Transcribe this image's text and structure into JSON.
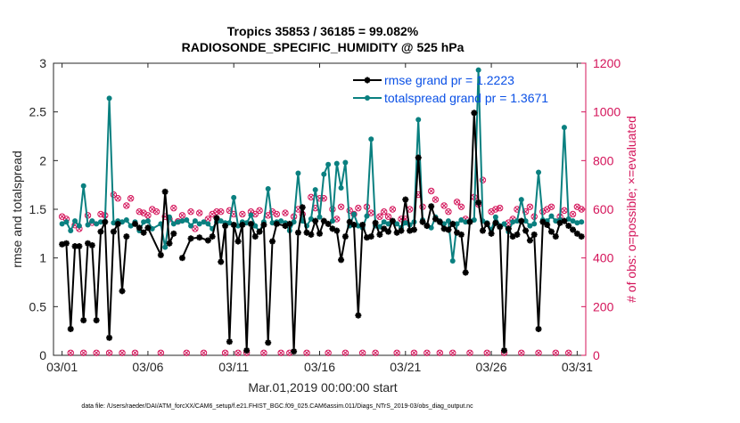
{
  "chart_data": {
    "type": "line",
    "title": "Tropics 35853 / 36185 = 99.082%",
    "subtitle": "RADIOSONDE_SPECIFIC_HUMIDITY @ 525 hPa",
    "xlabel": "Mar.01,2019 00:00:00 start",
    "ylabel": "rmse and totalspread",
    "ylabel_right": "# of obs: o=possible; ×=evaluated",
    "footer": "data file: /Users/raeder/DAI/ATM_forcXX/CAM6_setup/f.e21.FHIST_BGC.f09_025.CAM6assim.011/Diags_NTrS_2019-03/obs_diag_output.nc",
    "xlim": [
      0.5,
      31.5
    ],
    "ylim": [
      0,
      3
    ],
    "ylim_right": [
      0,
      1200
    ],
    "x_ticks": [
      1,
      6,
      11,
      16,
      21,
      26,
      31
    ],
    "x_tick_labels": [
      "03/01",
      "03/06",
      "03/11",
      "03/16",
      "03/21",
      "03/26",
      "03/31"
    ],
    "y_ticks": [
      0,
      0.5,
      1,
      1.5,
      2,
      2.5,
      3
    ],
    "y_tick_labels": [
      "0",
      "0.5",
      "1",
      "1.5",
      "2",
      "2.5",
      "3"
    ],
    "y2_ticks": [
      0,
      200,
      400,
      600,
      800,
      1000,
      1200
    ],
    "y2_tick_labels": [
      "0",
      "200",
      "400",
      "600",
      "800",
      "1000",
      "1200"
    ],
    "legend": [
      "rmse grand pr = 1.2223",
      "totalspread grand pr = 1.3671"
    ],
    "legend_position": "top-right",
    "grid": false,
    "colors": {
      "rmse": "#000000",
      "totalspread": "#0a8080",
      "obs": "#d4145a",
      "axis": "#262626"
    },
    "series": [
      {
        "name": "rmse",
        "x": [
          1.0,
          1.25,
          1.5,
          1.75,
          2.0,
          2.25,
          2.5,
          2.75,
          3.0,
          3.25,
          3.5,
          3.75,
          4.0,
          4.25,
          4.5,
          4.75,
          5.0,
          5.25,
          5.5,
          5.75,
          6.0,
          6.75,
          7.0,
          7.25,
          7.5,
          7.75,
          8.0,
          8.5,
          9.0,
          9.5,
          9.75,
          10.0,
          10.25,
          10.5,
          10.75,
          11.0,
          11.25,
          11.5,
          11.75,
          12.0,
          12.25,
          12.5,
          12.75,
          13.0,
          13.25,
          13.5,
          14.0,
          14.25,
          14.5,
          14.75,
          15.0,
          15.25,
          15.5,
          15.75,
          16.0,
          16.25,
          16.5,
          16.75,
          17.0,
          17.25,
          17.5,
          17.75,
          18.0,
          18.25,
          18.5,
          18.75,
          19.0,
          19.25,
          19.5,
          19.75,
          20.0,
          20.25,
          20.5,
          20.75,
          21.0,
          21.25,
          21.5,
          21.75,
          22.0,
          22.25,
          22.5,
          22.75,
          23.0,
          23.25,
          23.5,
          23.75,
          24.0,
          24.25,
          24.5,
          24.75,
          25.0,
          25.25,
          25.5,
          25.75,
          26.0,
          26.25,
          26.5,
          26.75,
          27.0,
          27.25,
          27.5,
          27.75,
          28.0,
          28.25,
          28.5,
          28.75,
          29.0,
          29.25,
          29.5,
          29.75,
          30.0,
          30.25,
          30.5,
          30.75,
          31.0,
          31.25
        ],
        "values": [
          1.14,
          1.15,
          0.27,
          1.12,
          1.12,
          0.36,
          1.15,
          1.13,
          0.36,
          1.27,
          1.37,
          0.18,
          1.27,
          1.35,
          0.66,
          1.22,
          null,
          1.35,
          1.31,
          1.26,
          1.31,
          1.03,
          1.68,
          1.15,
          1.25,
          null,
          1.0,
          1.2,
          1.21,
          1.18,
          1.22,
          1.41,
          0.96,
          1.33,
          0.14,
          1.34,
          1.17,
          1.34,
          0.05,
          1.35,
          1.22,
          1.27,
          1.34,
          0.13,
          1.17,
          1.35,
          1.33,
          1.35,
          0.04,
          1.26,
          1.52,
          1.26,
          1.24,
          1.38,
          1.25,
          1.38,
          1.35,
          1.3,
          1.28,
          0.98,
          1.22,
          1.37,
          1.34,
          0.41,
          1.34,
          1.21,
          1.22,
          1.36,
          1.24,
          1.3,
          1.27,
          1.38,
          1.26,
          1.28,
          1.6,
          1.28,
          1.29,
          2.03,
          1.37,
          1.33,
          1.53,
          1.4,
          1.37,
          1.3,
          1.29,
          1.35,
          1.26,
          1.24,
          0.85,
          1.37,
          2.49,
          1.57,
          1.28,
          1.35,
          1.25,
          1.36,
          1.32,
          0.05,
          1.3,
          1.22,
          1.24,
          1.38,
          1.28,
          1.18,
          1.24,
          0.27,
          1.37,
          1.34,
          1.27,
          1.22,
          1.36,
          1.38,
          1.33,
          1.29,
          1.25,
          1.22
        ],
        "marker": "star"
      },
      {
        "name": "totalspread",
        "x": [
          1.0,
          1.25,
          1.5,
          1.75,
          2.0,
          2.25,
          2.5,
          2.75,
          3.0,
          3.25,
          3.5,
          3.75,
          4.0,
          4.25,
          4.5,
          4.75,
          5.0,
          5.25,
          5.5,
          5.75,
          6.0,
          6.25,
          6.75,
          7.0,
          7.25,
          7.5,
          7.75,
          8.0,
          8.25,
          8.5,
          8.75,
          9.0,
          9.25,
          9.5,
          9.75,
          10.0,
          10.25,
          10.5,
          10.75,
          11.0,
          11.25,
          11.5,
          11.75,
          12.0,
          12.25,
          12.5,
          12.75,
          13.0,
          13.25,
          13.5,
          13.75,
          14.0,
          14.25,
          14.5,
          14.75,
          15.0,
          15.25,
          15.5,
          15.75,
          16.0,
          16.25,
          16.5,
          16.75,
          17.0,
          17.25,
          17.5,
          17.75,
          18.0,
          18.25,
          18.5,
          18.75,
          19.0,
          19.25,
          19.5,
          19.75,
          20.0,
          20.25,
          20.5,
          20.75,
          21.0,
          21.25,
          21.5,
          21.75,
          22.0,
          22.25,
          22.5,
          22.75,
          23.0,
          23.25,
          23.5,
          23.75,
          24.0,
          24.25,
          24.5,
          24.75,
          25.0,
          25.25,
          25.5,
          25.75,
          26.0,
          26.25,
          26.5,
          26.75,
          27.0,
          27.25,
          27.5,
          27.75,
          28.0,
          28.25,
          28.5,
          28.75,
          29.0,
          29.25,
          29.5,
          29.75,
          30.0,
          30.25,
          30.5,
          30.75,
          31.0,
          31.25
        ],
        "values": [
          1.35,
          1.37,
          1.28,
          1.38,
          1.33,
          1.74,
          1.34,
          1.38,
          1.35,
          1.37,
          1.37,
          2.64,
          1.36,
          1.38,
          1.37,
          1.39,
          1.33,
          1.37,
          1.28,
          1.37,
          1.38,
          1.3,
          1.35,
          1.11,
          1.42,
          1.35,
          1.37,
          1.38,
          1.39,
          1.33,
          1.38,
          1.35,
          1.37,
          1.35,
          1.3,
          1.37,
          1.38,
          1.36,
          1.36,
          1.62,
          1.33,
          1.37,
          1.36,
          1.44,
          1.33,
          1.27,
          1.37,
          1.71,
          1.36,
          1.37,
          1.38,
          1.36,
          1.28,
          1.37,
          1.87,
          1.38,
          1.33,
          1.4,
          1.7,
          1.42,
          1.86,
          1.96,
          1.38,
          1.97,
          1.72,
          1.98,
          1.33,
          1.45,
          1.33,
          1.31,
          1.43,
          2.22,
          1.33,
          1.32,
          1.37,
          1.35,
          1.38,
          1.35,
          1.31,
          1.36,
          1.34,
          1.37,
          2.42,
          1.39,
          1.33,
          1.31,
          1.42,
          1.38,
          1.35,
          1.38,
          0.97,
          1.35,
          1.39,
          1.37,
          1.38,
          1.39,
          2.93,
          1.38,
          1.36,
          1.29,
          1.42,
          1.33,
          1.35,
          1.27,
          1.37,
          1.38,
          1.6,
          1.38,
          1.33,
          1.35,
          1.88,
          1.39,
          1.38,
          1.43,
          1.38,
          1.39,
          2.34,
          1.4,
          1.38,
          1.36,
          1.37
        ],
        "marker": "dot"
      }
    ],
    "obs_possible": {
      "x": [
        1.0,
        1.25,
        1.5,
        1.75,
        2.0,
        2.25,
        2.5,
        2.75,
        3.0,
        3.25,
        3.5,
        3.75,
        4.0,
        4.25,
        4.5,
        4.75,
        5.0,
        5.25,
        5.5,
        5.75,
        6.0,
        6.25,
        6.5,
        6.75,
        7.0,
        7.25,
        7.5,
        7.75,
        8.0,
        8.25,
        8.5,
        8.75,
        9.0,
        9.25,
        9.5,
        9.75,
        10.0,
        10.25,
        10.5,
        10.75,
        11.0,
        11.25,
        11.5,
        11.75,
        12.0,
        12.25,
        12.5,
        12.75,
        13.0,
        13.25,
        13.5,
        13.75,
        14.0,
        14.25,
        14.5,
        14.75,
        15.0,
        15.25,
        15.5,
        15.75,
        16.0,
        16.25,
        16.5,
        16.75,
        17.0,
        17.25,
        17.5,
        17.75,
        18.0,
        18.25,
        18.5,
        18.75,
        19.0,
        19.25,
        19.5,
        19.75,
        20.0,
        20.25,
        20.5,
        20.75,
        21.0,
        21.25,
        21.5,
        21.75,
        22.0,
        22.25,
        22.5,
        22.75,
        23.0,
        23.25,
        23.5,
        23.75,
        24.0,
        24.25,
        24.5,
        24.75,
        25.0,
        25.25,
        25.5,
        25.75,
        26.0,
        26.25,
        26.5,
        26.75,
        27.0,
        27.25,
        27.5,
        27.75,
        28.0,
        28.25,
        28.5,
        28.75,
        29.0,
        29.25,
        29.5,
        29.75,
        30.0,
        30.25,
        30.5,
        30.75,
        31.0,
        31.25
      ],
      "values": [
        570,
        560,
        10,
        535,
        520,
        10,
        575,
        545,
        10,
        580,
        575,
        10,
        660,
        645,
        10,
        615,
        645,
        10,
        590,
        585,
        575,
        600,
        590,
        10,
        570,
        560,
        605,
        550,
        575,
        10,
        590,
        520,
        585,
        10,
        560,
        580,
        590,
        590,
        10,
        595,
        580,
        10,
        580,
        10,
        590,
        580,
        595,
        10,
        575,
        590,
        580,
        10,
        585,
        10,
        570,
        600,
        580,
        10,
        650,
        605,
        645,
        645,
        10,
        600,
        560,
        610,
        10,
        595,
        580,
        605,
        10,
        610,
        585,
        10,
        570,
        590,
        570,
        600,
        10,
        560,
        560,
        600,
        10,
        660,
        610,
        10,
        675,
        640,
        10,
        615,
        590,
        10,
        630,
        610,
        560,
        10,
        650,
        620,
        720,
        10,
        590,
        600,
        605,
        10,
        545,
        560,
        600,
        10,
        590,
        610,
        570,
        10,
        590,
        600,
        610,
        10,
        570,
        595,
        10,
        580,
        610,
        600
      ],
      "marker": "circle"
    },
    "obs_evaluated": {
      "x": [
        1.0,
        1.25,
        1.5,
        1.75,
        2.0,
        2.25,
        2.5,
        2.75,
        3.0,
        3.25,
        3.5,
        3.75,
        4.0,
        4.25,
        4.5,
        4.75,
        5.0,
        5.25,
        5.5,
        5.75,
        6.0,
        6.25,
        6.5,
        6.75,
        7.0,
        7.25,
        7.5,
        7.75,
        8.0,
        8.25,
        8.5,
        8.75,
        9.0,
        9.25,
        9.5,
        9.75,
        10.0,
        10.25,
        10.5,
        10.75,
        11.0,
        11.25,
        11.5,
        11.75,
        12.0,
        12.25,
        12.5,
        12.75,
        13.0,
        13.25,
        13.5,
        13.75,
        14.0,
        14.25,
        14.5,
        14.75,
        15.0,
        15.25,
        15.5,
        15.75,
        16.0,
        16.25,
        16.5,
        16.75,
        17.0,
        17.25,
        17.5,
        17.75,
        18.0,
        18.25,
        18.5,
        18.75,
        19.0,
        19.25,
        19.5,
        19.75,
        20.0,
        20.25,
        20.5,
        20.75,
        21.0,
        21.25,
        21.5,
        21.75,
        22.0,
        22.25,
        22.5,
        22.75,
        23.0,
        23.25,
        23.5,
        23.75,
        24.0,
        24.25,
        24.5,
        24.75,
        25.0,
        25.25,
        25.5,
        25.75,
        26.0,
        26.25,
        26.5,
        26.75,
        27.0,
        27.25,
        27.5,
        27.75,
        28.0,
        28.25,
        28.5,
        28.75,
        29.0,
        29.25,
        29.5,
        29.75,
        30.0,
        30.25,
        30.5,
        30.75,
        31.0,
        31.25
      ],
      "values": [
        570,
        560,
        10,
        535,
        520,
        10,
        575,
        545,
        10,
        580,
        575,
        10,
        660,
        645,
        10,
        615,
        645,
        10,
        590,
        585,
        575,
        600,
        590,
        10,
        570,
        560,
        605,
        550,
        575,
        10,
        590,
        520,
        585,
        10,
        560,
        580,
        590,
        590,
        10,
        595,
        580,
        10,
        580,
        10,
        590,
        580,
        595,
        10,
        575,
        590,
        580,
        10,
        585,
        10,
        570,
        600,
        580,
        10,
        650,
        605,
        645,
        645,
        10,
        600,
        560,
        610,
        10,
        595,
        580,
        605,
        10,
        610,
        585,
        10,
        570,
        590,
        570,
        600,
        10,
        560,
        560,
        600,
        10,
        660,
        610,
        10,
        675,
        640,
        10,
        615,
        590,
        10,
        630,
        610,
        560,
        10,
        650,
        620,
        720,
        10,
        590,
        600,
        605,
        10,
        545,
        560,
        600,
        10,
        590,
        610,
        570,
        10,
        590,
        600,
        610,
        10,
        570,
        595,
        10,
        580,
        610,
        600
      ],
      "marker": "x"
    }
  }
}
